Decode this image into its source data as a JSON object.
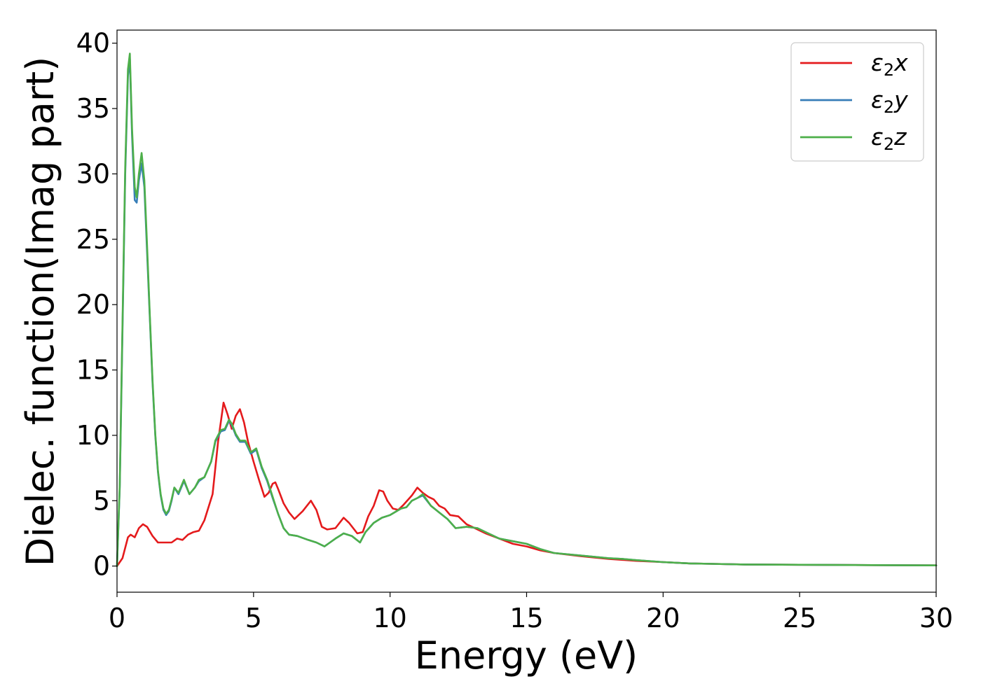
{
  "chart_data": {
    "type": "line",
    "title": "",
    "xlabel": "Energy (eV)",
    "ylabel": "Dielec. function(Imag part)",
    "xlim": [
      0,
      30
    ],
    "ylim": [
      -2,
      41
    ],
    "xticks": [
      0,
      5,
      10,
      15,
      20,
      25,
      30
    ],
    "yticks": [
      0,
      5,
      10,
      15,
      20,
      25,
      30,
      35,
      40
    ],
    "grid": false,
    "legend_position": "top-right",
    "series": [
      {
        "name": "ε₂x",
        "legend_base": "ε",
        "legend_sub": "2",
        "legend_var": "x",
        "color": "#e41a1c",
        "x": [
          0,
          0.2,
          0.4,
          0.5,
          0.65,
          0.8,
          0.95,
          1.1,
          1.3,
          1.5,
          1.8,
          2.0,
          2.2,
          2.4,
          2.6,
          2.8,
          3.0,
          3.2,
          3.5,
          3.7,
          3.9,
          4.05,
          4.2,
          4.35,
          4.5,
          4.65,
          4.8,
          5.0,
          5.2,
          5.4,
          5.55,
          5.7,
          5.8,
          5.9,
          6.1,
          6.3,
          6.5,
          6.8,
          7.1,
          7.3,
          7.5,
          7.7,
          8.0,
          8.3,
          8.5,
          8.8,
          9.0,
          9.2,
          9.4,
          9.6,
          9.75,
          9.9,
          10.1,
          10.3,
          10.5,
          10.8,
          11.0,
          11.2,
          11.4,
          11.6,
          11.8,
          12.0,
          12.2,
          12.5,
          12.8,
          13.0,
          13.5,
          14.0,
          14.5,
          15.0,
          15.5,
          16.0,
          17.0,
          18.0,
          19.0,
          20.0,
          21.0,
          23.0,
          25.0,
          27.0,
          30.0
        ],
        "values": [
          0.0,
          0.6,
          2.2,
          2.4,
          2.2,
          2.9,
          3.2,
          3.0,
          2.3,
          1.8,
          1.8,
          1.8,
          2.1,
          2.0,
          2.4,
          2.6,
          2.7,
          3.5,
          5.5,
          9.5,
          12.5,
          11.6,
          10.5,
          11.5,
          12.0,
          11.0,
          9.5,
          8.0,
          6.6,
          5.3,
          5.6,
          6.3,
          6.4,
          5.9,
          4.8,
          4.1,
          3.6,
          4.2,
          5.0,
          4.3,
          3.0,
          2.8,
          2.9,
          3.7,
          3.3,
          2.5,
          2.6,
          3.8,
          4.6,
          5.8,
          5.7,
          5.0,
          4.4,
          4.3,
          4.7,
          5.4,
          6.0,
          5.6,
          5.3,
          5.1,
          4.6,
          4.4,
          3.9,
          3.8,
          3.2,
          3.0,
          2.5,
          2.1,
          1.7,
          1.5,
          1.2,
          1.0,
          0.75,
          0.55,
          0.4,
          0.3,
          0.2,
          0.12,
          0.1,
          0.08,
          0.05
        ]
      },
      {
        "name": "ε₂y",
        "legend_base": "ε",
        "legend_sub": "2",
        "legend_var": "y",
        "color": "#377eb8",
        "x": [
          0,
          0.1,
          0.2,
          0.3,
          0.4,
          0.47,
          0.55,
          0.65,
          0.72,
          0.8,
          0.9,
          1.0,
          1.1,
          1.2,
          1.3,
          1.4,
          1.5,
          1.6,
          1.7,
          1.8,
          1.9,
          2.0,
          2.1,
          2.25,
          2.45,
          2.65,
          2.85,
          3.0,
          3.2,
          3.45,
          3.6,
          3.8,
          3.95,
          4.1,
          4.2,
          4.35,
          4.5,
          4.7,
          4.9,
          5.1,
          5.3,
          5.5,
          5.7,
          5.9,
          6.1,
          6.3,
          6.6,
          7.0,
          7.3,
          7.6,
          7.8,
          8.0,
          8.3,
          8.6,
          8.9,
          9.1,
          9.4,
          9.7,
          10.0,
          10.4,
          10.6,
          10.8,
          11.0,
          11.2,
          11.5,
          11.8,
          12.1,
          12.4,
          12.8,
          13.2,
          13.6,
          14.0,
          14.5,
          15.0,
          15.5,
          16.0,
          17.0,
          18.0,
          18.5,
          19.0,
          20.0,
          21.0,
          23.0,
          25.0,
          27.0,
          30.0
        ],
        "values": [
          0,
          6.0,
          18.0,
          30.0,
          37.5,
          38.8,
          33.0,
          28.0,
          27.8,
          29.5,
          30.8,
          29.0,
          24.0,
          19.0,
          14.0,
          10.0,
          7.2,
          5.4,
          4.3,
          3.9,
          4.2,
          5.0,
          6.0,
          5.5,
          6.5,
          5.5,
          6.0,
          6.5,
          6.8,
          8.0,
          9.5,
          10.3,
          10.4,
          11.1,
          10.8,
          10.0,
          9.5,
          9.5,
          8.6,
          8.9,
          7.5,
          6.5,
          5.2,
          4.0,
          2.9,
          2.4,
          2.3,
          2.0,
          1.8,
          1.5,
          1.8,
          2.1,
          2.5,
          2.3,
          1.8,
          2.6,
          3.3,
          3.7,
          3.9,
          4.4,
          4.5,
          5.0,
          5.2,
          5.4,
          4.6,
          4.1,
          3.6,
          2.9,
          3.0,
          2.9,
          2.5,
          2.1,
          1.9,
          1.7,
          1.3,
          1.0,
          0.8,
          0.6,
          0.55,
          0.45,
          0.3,
          0.2,
          0.12,
          0.1,
          0.08,
          0.05
        ]
      },
      {
        "name": "ε₂z",
        "legend_base": "ε",
        "legend_sub": "2",
        "legend_var": "z",
        "color": "#4daf4a",
        "x": [
          0,
          0.1,
          0.2,
          0.3,
          0.4,
          0.47,
          0.55,
          0.65,
          0.72,
          0.8,
          0.9,
          1.0,
          1.1,
          1.2,
          1.3,
          1.4,
          1.5,
          1.6,
          1.7,
          1.8,
          1.9,
          2.0,
          2.1,
          2.25,
          2.45,
          2.65,
          2.85,
          3.0,
          3.2,
          3.45,
          3.6,
          3.8,
          3.95,
          4.1,
          4.2,
          4.35,
          4.5,
          4.7,
          4.9,
          5.1,
          5.3,
          5.5,
          5.7,
          5.9,
          6.1,
          6.3,
          6.6,
          7.0,
          7.3,
          7.6,
          7.8,
          8.0,
          8.3,
          8.6,
          8.9,
          9.1,
          9.4,
          9.7,
          10.0,
          10.4,
          10.6,
          10.8,
          11.0,
          11.2,
          11.5,
          11.8,
          12.1,
          12.4,
          12.8,
          13.2,
          13.6,
          14.0,
          14.5,
          15.0,
          15.5,
          16.0,
          17.0,
          18.0,
          18.5,
          19.0,
          20.0,
          21.0,
          23.0,
          25.0,
          27.0,
          30.0
        ],
        "values": [
          0,
          6.2,
          18.5,
          30.5,
          38.0,
          39.2,
          33.5,
          29.0,
          28.2,
          30.0,
          31.6,
          29.5,
          24.5,
          19.2,
          14.2,
          10.1,
          7.3,
          5.5,
          4.4,
          4.0,
          4.3,
          5.1,
          6.0,
          5.6,
          6.6,
          5.5,
          6.0,
          6.6,
          6.8,
          8.0,
          9.6,
          10.4,
          10.5,
          11.2,
          10.9,
          10.1,
          9.6,
          9.6,
          8.7,
          9.0,
          7.6,
          6.6,
          5.3,
          4.0,
          2.9,
          2.4,
          2.3,
          2.0,
          1.8,
          1.5,
          1.8,
          2.1,
          2.5,
          2.3,
          1.8,
          2.6,
          3.3,
          3.7,
          3.9,
          4.4,
          4.5,
          5.0,
          5.2,
          5.5,
          4.6,
          4.1,
          3.6,
          2.9,
          3.0,
          2.9,
          2.5,
          2.1,
          1.9,
          1.7,
          1.3,
          1.0,
          0.8,
          0.6,
          0.55,
          0.45,
          0.3,
          0.2,
          0.12,
          0.1,
          0.08,
          0.05
        ]
      }
    ]
  }
}
